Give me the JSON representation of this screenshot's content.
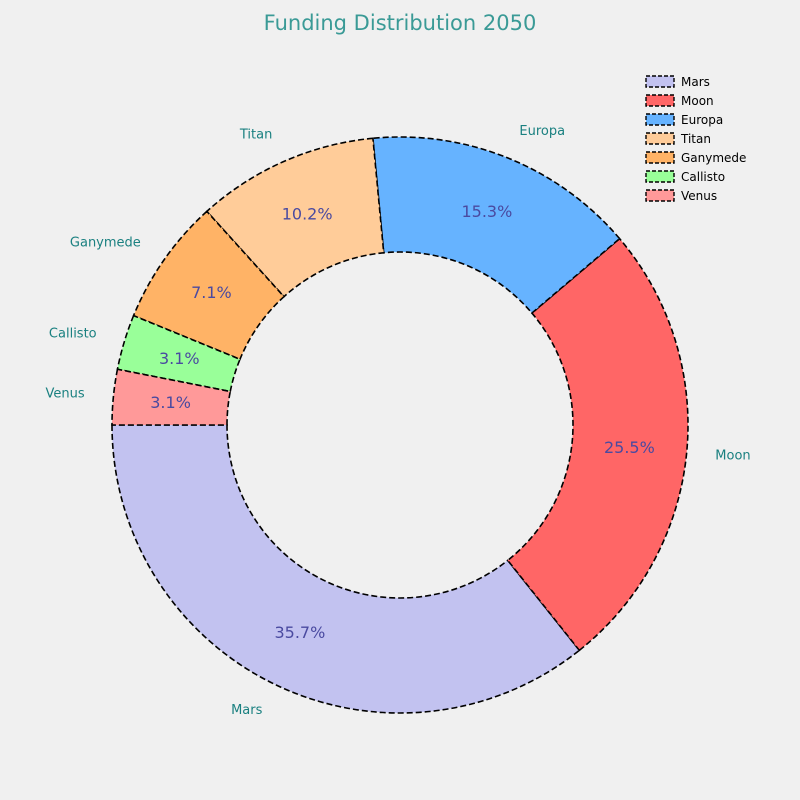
{
  "chart_data": {
    "type": "pie",
    "donut": true,
    "title": "Funding Distribution 2050",
    "categories": [
      "Mars",
      "Moon",
      "Europa",
      "Titan",
      "Ganymede",
      "Callisto",
      "Venus"
    ],
    "values": [
      35.7,
      25.5,
      15.3,
      10.2,
      7.1,
      3.1,
      3.1
    ],
    "value_labels": [
      "35.7%",
      "25.5%",
      "15.3%",
      "10.2%",
      "7.1%",
      "3.1%",
      "3.1%"
    ],
    "colors": [
      "#c2c2f0",
      "#ff6666",
      "#66b3ff",
      "#ffcc99",
      "#ffb366",
      "#99ff99",
      "#ff9999"
    ],
    "legend_position": "top-right",
    "grid": false
  },
  "style": {
    "background": "#f0f0f0",
    "title_color": "#3a9a96",
    "category_label_color": "#1a8080",
    "percent_label_color": "#4a4aa0"
  }
}
